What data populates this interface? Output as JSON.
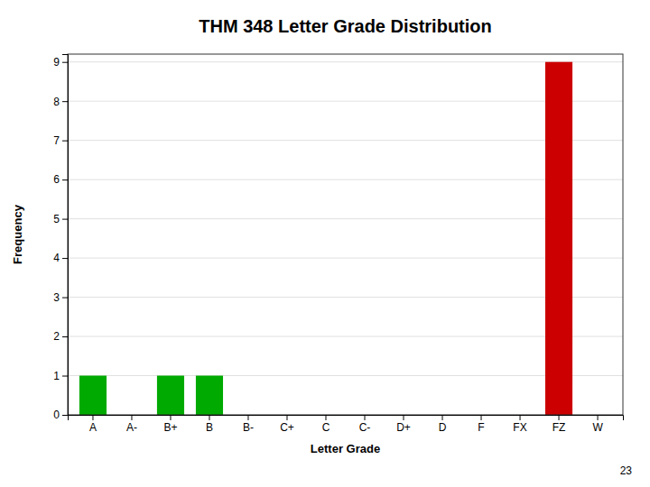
{
  "chart_data": {
    "type": "bar",
    "title": "THM 348 Letter Grade Distribution",
    "categories": [
      "A",
      "A-",
      "B+",
      "B",
      "B-",
      "C+",
      "C",
      "C-",
      "D+",
      "D",
      "F",
      "FX",
      "FZ",
      "W"
    ],
    "values": [
      1,
      0,
      1,
      1,
      0,
      0,
      0,
      0,
      0,
      0,
      0,
      0,
      9,
      0
    ],
    "colors": [
      "#00aa00",
      "#cc0000",
      "#00aa00",
      "#00aa00",
      "#cc0000",
      "#cc0000",
      "#cc0000",
      "#cc0000",
      "#cc0000",
      "#cc0000",
      "#cc0000",
      "#cc0000",
      "#cc0000",
      "#cc0000"
    ],
    "xlabel": "Letter Grade",
    "ylabel": "Frequency",
    "ylim": [
      0,
      9.2
    ],
    "yticks": [
      0,
      1,
      2,
      3,
      4,
      5,
      6,
      7,
      8,
      9
    ],
    "grid": true,
    "annotations": [
      "23"
    ]
  }
}
